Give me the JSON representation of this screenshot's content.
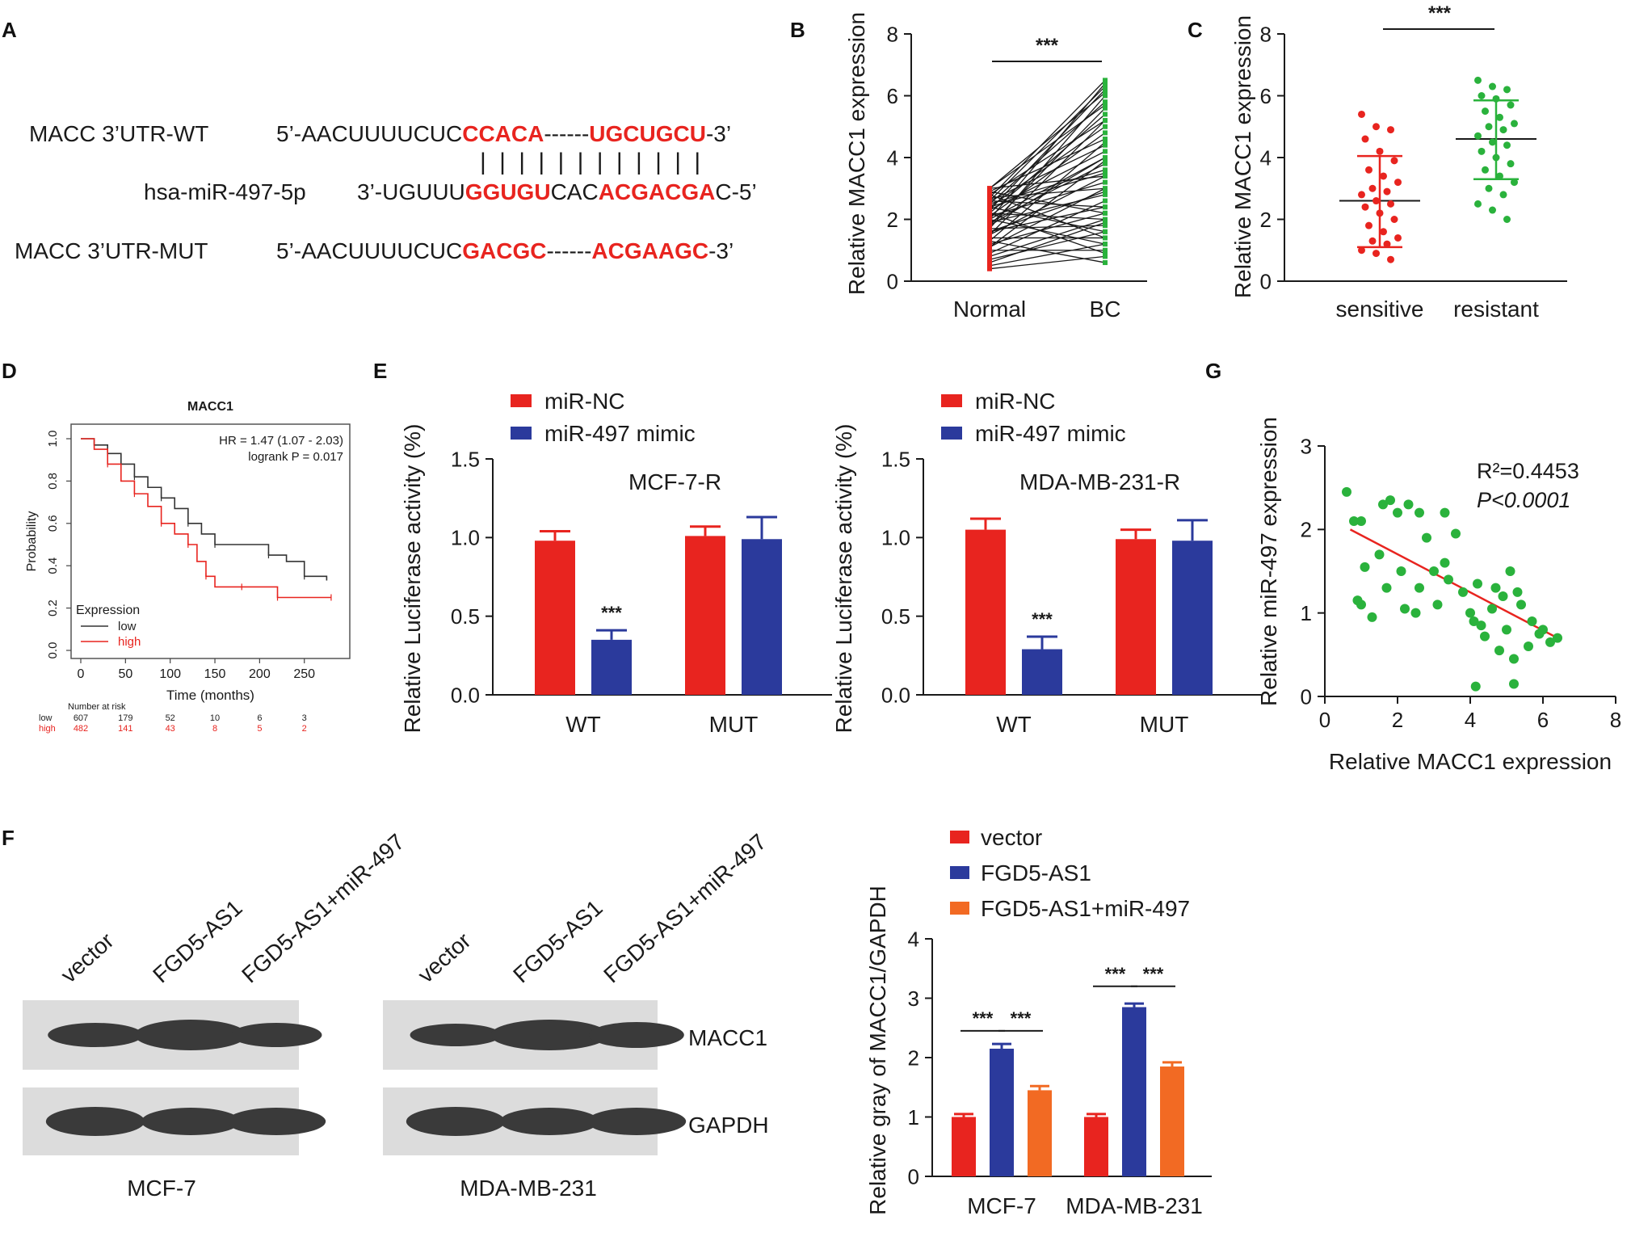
{
  "panel_labels": [
    "A",
    "B",
    "C",
    "D",
    "E",
    "F",
    "G"
  ],
  "panel_a": {
    "rows": [
      {
        "name": "MACC 3’UTR-WT",
        "parts": [
          "5’-AACUUUUCUC",
          "CCACA",
          "------",
          "UGCUGCU",
          "-3’"
        ]
      },
      {
        "name": "hsa-miR-497-5p",
        "parts": [
          "3’-UGUUU",
          "GGUGU",
          "CAC",
          "ACGACGA",
          "C-5’"
        ]
      },
      {
        "name": "MACC 3’UTR-MUT",
        "parts": [
          "5’-AACUUUUCUC",
          "GACGC",
          "------",
          "ACGAAGC",
          "-3’"
        ]
      }
    ],
    "pairing_bars": "| | | | |    | | | | | | |"
  },
  "chart_data": [
    {
      "panel": "B",
      "type": "line",
      "categories": [
        "Normal",
        "BC"
      ],
      "ylabel": "Relative MACC1 expression",
      "ylim": [
        0,
        8
      ],
      "yticks": [
        0,
        2,
        4,
        6,
        8
      ],
      "significance": "***",
      "pairs": [
        [
          0.4,
          0.8
        ],
        [
          0.5,
          1.2
        ],
        [
          0.7,
          1.6
        ],
        [
          0.8,
          2.0
        ],
        [
          0.9,
          2.6
        ],
        [
          1.0,
          1.0
        ],
        [
          1.1,
          3.0
        ],
        [
          1.2,
          2.2
        ],
        [
          1.3,
          4.5
        ],
        [
          1.4,
          1.4
        ],
        [
          1.5,
          5.2
        ],
        [
          1.5,
          3.4
        ],
        [
          1.6,
          2.4
        ],
        [
          1.7,
          6.0
        ],
        [
          1.7,
          1.8
        ],
        [
          1.8,
          4.0
        ],
        [
          1.8,
          5.6
        ],
        [
          1.9,
          2.8
        ],
        [
          1.9,
          3.8
        ],
        [
          2.0,
          6.4
        ],
        [
          2.0,
          1.2
        ],
        [
          2.1,
          4.8
        ],
        [
          2.1,
          3.2
        ],
        [
          2.2,
          5.4
        ],
        [
          2.2,
          2.0
        ],
        [
          2.3,
          6.2
        ],
        [
          2.3,
          4.2
        ],
        [
          2.4,
          1.6
        ],
        [
          2.4,
          5.0
        ],
        [
          2.5,
          3.6
        ],
        [
          2.5,
          5.8
        ],
        [
          2.6,
          2.4
        ],
        [
          2.6,
          4.4
        ],
        [
          2.7,
          6.5
        ],
        [
          2.7,
          3.0
        ],
        [
          2.8,
          1.4
        ],
        [
          2.8,
          5.2
        ],
        [
          2.9,
          4.6
        ],
        [
          2.9,
          2.2
        ],
        [
          3.0,
          5.7
        ],
        [
          3.0,
          3.4
        ],
        [
          3.0,
          6.1
        ],
        [
          1.3,
          0.6
        ],
        [
          1.6,
          2.9
        ],
        [
          2.0,
          4.0
        ],
        [
          2.4,
          3.5
        ],
        [
          0.6,
          1.9
        ],
        [
          1.1,
          3.9
        ],
        [
          2.2,
          0.9
        ],
        [
          2.6,
          6.3
        ]
      ]
    },
    {
      "panel": "C",
      "type": "scatter",
      "categories": [
        "sensitive",
        "resistant"
      ],
      "ylabel": "Relative MACC1 expression",
      "ylim": [
        0,
        8
      ],
      "yticks": [
        0,
        2,
        4,
        6,
        8
      ],
      "significance": "***",
      "series": [
        {
          "name": "sensitive",
          "mean": 2.6,
          "sd_low": 1.1,
          "sd_high": 4.05,
          "values": [
            5.4,
            5.0,
            4.9,
            4.6,
            4.2,
            3.9,
            3.6,
            3.4,
            3.2,
            3.0,
            2.9,
            2.8,
            2.6,
            2.5,
            2.4,
            2.2,
            2.0,
            1.8,
            1.6,
            1.4,
            1.3,
            1.2,
            1.0,
            0.9,
            0.7
          ]
        },
        {
          "name": "resistant",
          "mean": 4.6,
          "sd_low": 3.3,
          "sd_high": 5.85,
          "values": [
            6.5,
            6.3,
            6.2,
            6.0,
            5.9,
            5.7,
            5.5,
            5.3,
            5.1,
            5.0,
            4.9,
            4.7,
            4.5,
            4.4,
            4.2,
            4.0,
            3.8,
            3.6,
            3.4,
            3.2,
            3.0,
            2.8,
            2.5,
            2.3,
            2.0
          ]
        }
      ]
    },
    {
      "panel": "D",
      "type": "line",
      "title": "MACC1",
      "xlabel": "Time (months)",
      "ylabel": "Probability",
      "xticks": [
        0,
        50,
        100,
        150,
        200,
        250
      ],
      "yticks": [
        0.0,
        0.2,
        0.4,
        0.6,
        0.8,
        1.0
      ],
      "stats_line1": "HR = 1.47 (1.07 - 2.03)",
      "stats_line2": "logrank P = 0.017",
      "legend_title": "Expression",
      "series": [
        {
          "name": "low",
          "x": [
            0,
            15,
            30,
            45,
            60,
            75,
            90,
            105,
            120,
            135,
            150,
            180,
            210,
            230,
            250,
            275
          ],
          "y": [
            1.0,
            0.97,
            0.93,
            0.88,
            0.82,
            0.77,
            0.72,
            0.67,
            0.6,
            0.55,
            0.5,
            0.5,
            0.45,
            0.42,
            0.35,
            0.33
          ]
        },
        {
          "name": "high",
          "x": [
            0,
            15,
            30,
            45,
            60,
            75,
            90,
            105,
            120,
            130,
            140,
            150,
            180,
            210,
            220,
            240,
            280
          ],
          "y": [
            1.0,
            0.95,
            0.88,
            0.8,
            0.74,
            0.68,
            0.6,
            0.55,
            0.5,
            0.42,
            0.35,
            0.3,
            0.3,
            0.3,
            0.25,
            0.25,
            0.25
          ]
        }
      ],
      "risk_table": {
        "header": "Number at risk",
        "rows": [
          {
            "name": "low",
            "values": [
              "607",
              "179",
              "52",
              "10",
              "6",
              "3"
            ]
          },
          {
            "name": "high",
            "values": [
              "482",
              "141",
              "43",
              "8",
              "5",
              "2"
            ]
          }
        ]
      }
    },
    {
      "panel": "E",
      "type": "bar",
      "cell_line": "MCF-7-R",
      "categories": [
        "WT",
        "MUT"
      ],
      "ylabel": "Relative Luciferase activity (%)",
      "ylim": [
        0,
        1.5
      ],
      "yticks": [
        0.0,
        0.5,
        1.0,
        1.5
      ],
      "series": [
        {
          "name": "miR-NC",
          "values": [
            0.98,
            1.01
          ],
          "errors": [
            0.06,
            0.06
          ]
        },
        {
          "name": "miR-497 mimic",
          "values": [
            0.35,
            0.99
          ],
          "errors": [
            0.06,
            0.14
          ]
        }
      ],
      "annotations": [
        "***"
      ]
    },
    {
      "panel": "E",
      "type": "bar",
      "cell_line": "MDA-MB-231-R",
      "categories": [
        "WT",
        "MUT"
      ],
      "ylabel": "Relative Luciferase activity (%)",
      "ylim": [
        0,
        1.5
      ],
      "yticks": [
        0.0,
        0.5,
        1.0,
        1.5
      ],
      "series": [
        {
          "name": "miR-NC",
          "values": [
            1.05,
            0.99
          ],
          "errors": [
            0.07,
            0.06
          ]
        },
        {
          "name": "miR-497 mimic",
          "values": [
            0.29,
            0.98
          ],
          "errors": [
            0.08,
            0.13
          ]
        }
      ],
      "annotations": [
        "***"
      ]
    },
    {
      "panel": "G",
      "type": "scatter",
      "xlabel": "Relative MACC1 expression",
      "ylabel": "Relative miR-497 expression",
      "xlim": [
        0,
        8
      ],
      "ylim": [
        0,
        3
      ],
      "xticks": [
        0,
        2,
        4,
        6,
        8
      ],
      "yticks": [
        0,
        1,
        2,
        3
      ],
      "r2_label": "R²=0.4453",
      "p_label": "P<0.0001",
      "fit": {
        "x": [
          0.7,
          6.4
        ],
        "y": [
          2.0,
          0.7
        ]
      },
      "points": [
        [
          0.6,
          2.45
        ],
        [
          0.8,
          2.1
        ],
        [
          1.0,
          2.1
        ],
        [
          1.6,
          2.3
        ],
        [
          1.8,
          2.35
        ],
        [
          2.0,
          2.2
        ],
        [
          2.3,
          2.3
        ],
        [
          2.6,
          2.2
        ],
        [
          3.3,
          2.2
        ],
        [
          3.6,
          1.95
        ],
        [
          1.1,
          1.55
        ],
        [
          1.5,
          1.7
        ],
        [
          1.7,
          1.3
        ],
        [
          2.1,
          1.5
        ],
        [
          2.6,
          1.3
        ],
        [
          3.0,
          1.5
        ],
        [
          3.4,
          1.4
        ],
        [
          3.8,
          1.25
        ],
        [
          1.0,
          1.1
        ],
        [
          0.9,
          1.15
        ],
        [
          1.3,
          0.95
        ],
        [
          2.2,
          1.05
        ],
        [
          2.5,
          1.0
        ],
        [
          3.1,
          1.1
        ],
        [
          4.0,
          1.0
        ],
        [
          4.3,
          0.85
        ],
        [
          4.6,
          1.05
        ],
        [
          4.9,
          1.2
        ],
        [
          5.1,
          1.5
        ],
        [
          5.4,
          1.1
        ],
        [
          5.7,
          0.9
        ],
        [
          5.9,
          0.75
        ],
        [
          6.2,
          0.65
        ],
        [
          6.4,
          0.7
        ],
        [
          4.1,
          0.9
        ],
        [
          4.4,
          0.72
        ],
        [
          4.8,
          0.55
        ],
        [
          5.2,
          0.45
        ],
        [
          5.6,
          0.6
        ],
        [
          6.0,
          0.8
        ],
        [
          3.3,
          1.6
        ],
        [
          4.7,
          1.3
        ],
        [
          5.0,
          0.8
        ],
        [
          2.8,
          1.9
        ],
        [
          4.2,
          1.35
        ],
        [
          5.3,
          1.25
        ],
        [
          4.15,
          0.12
        ],
        [
          5.2,
          0.15
        ]
      ]
    },
    {
      "panel": "F",
      "type": "bar",
      "categories": [
        "MCF-7",
        "MDA-MB-231"
      ],
      "ylabel": "Relative gray of MACC1/GAPDH",
      "ylim": [
        0,
        4
      ],
      "yticks": [
        0,
        1,
        2,
        3,
        4
      ],
      "series": [
        {
          "name": "vector",
          "values": [
            1.0,
            1.0
          ],
          "errors": [
            0.05,
            0.05
          ]
        },
        {
          "name": "FGD5-AS1",
          "values": [
            2.15,
            2.85
          ],
          "errors": [
            0.08,
            0.06
          ]
        },
        {
          "name": "FGD5-AS1+miR-497",
          "values": [
            1.45,
            1.85
          ],
          "errors": [
            0.07,
            0.07
          ]
        }
      ],
      "annotations": [
        "***",
        "***",
        "***",
        "***"
      ]
    }
  ],
  "panel_f_blot": {
    "lane_labels": [
      "vector",
      "FGD5-AS1",
      "FGD5-AS1+miR-497"
    ],
    "bands": [
      "MACC1",
      "GAPDH"
    ],
    "cell_lines": [
      "MCF-7",
      "MDA-MB-231"
    ]
  },
  "colors": {
    "red": "#e8241f",
    "blue": "#2b3a9c",
    "orange": "#f26a23",
    "green": "#2ab23c",
    "dark": "#1a1a1a",
    "km_low": "#333333",
    "km_high": "#e8241f"
  }
}
